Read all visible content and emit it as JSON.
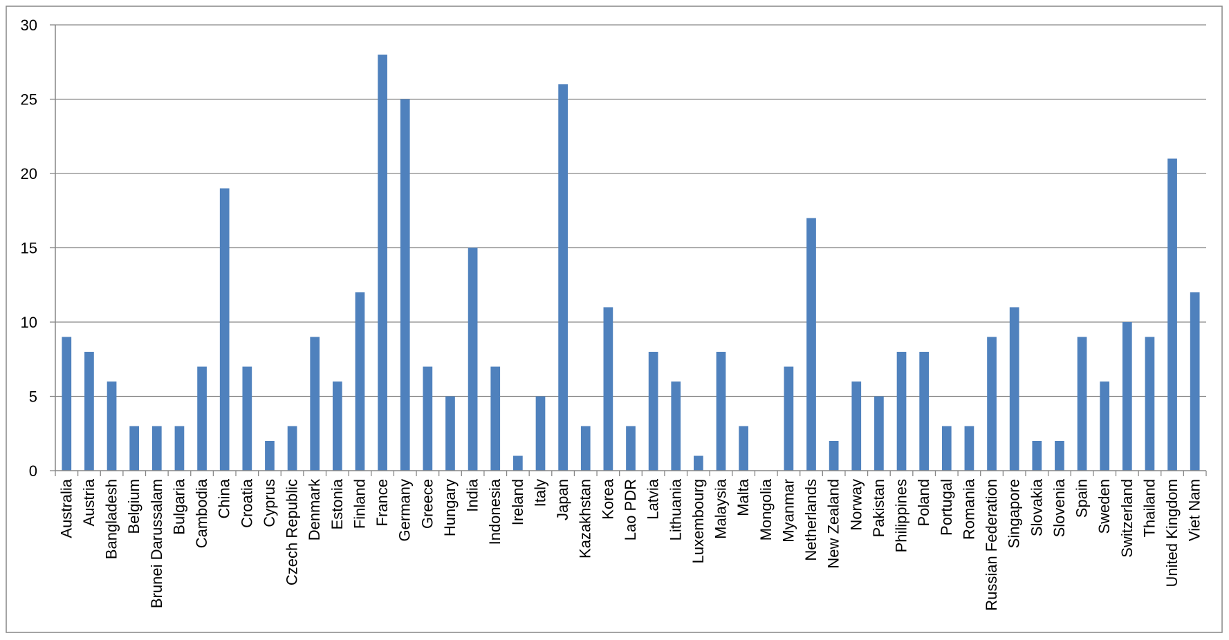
{
  "chart_data": {
    "type": "bar",
    "title": "",
    "xlabel": "",
    "ylabel": "",
    "ylim": [
      0,
      30
    ],
    "yticks": [
      0,
      5,
      10,
      15,
      20,
      25,
      30
    ],
    "grid": true,
    "legend": "none",
    "categories": [
      "Australia",
      "Austria",
      "Bangladesh",
      "Belgium",
      "Brunei Darussalam",
      "Bulgaria",
      "Cambodia",
      "China",
      "Croatia",
      "Cyprus",
      "Czech Republic",
      "Denmark",
      "Estonia",
      "Finland",
      "France",
      "Germany",
      "Greece",
      "Hungary",
      "India",
      "Indonesia",
      "Ireland",
      "Italy",
      "Japan",
      "Kazakhstan",
      "Korea",
      "Lao PDR",
      "Latvia",
      "Lithuania",
      "Luxembourg",
      "Malaysia",
      "Malta",
      "Mongolia",
      "Myanmar",
      "Netherlands",
      "New Zealand",
      "Norway",
      "Pakistan",
      "Philippines",
      "Poland",
      "Portugal",
      "Romania",
      "Russian Federation",
      "Singapore",
      "Slovakia",
      "Slovenia",
      "Spain",
      "Sweden",
      "Switzerland",
      "Thailand",
      "United Kingdom",
      "Viet Nam"
    ],
    "values": [
      9,
      8,
      6,
      3,
      3,
      3,
      7,
      19,
      7,
      2,
      3,
      9,
      6,
      12,
      28,
      25,
      7,
      5,
      15,
      7,
      1,
      5,
      26,
      3,
      11,
      3,
      8,
      6,
      1,
      8,
      3,
      0,
      7,
      17,
      2,
      6,
      5,
      8,
      8,
      3,
      3,
      9,
      11,
      2,
      2,
      9,
      6,
      10,
      9,
      21,
      12
    ],
    "colors": {
      "bar": "#4f81bd",
      "grid": "#868686",
      "axis": "#868686",
      "frame": "#868686"
    }
  }
}
